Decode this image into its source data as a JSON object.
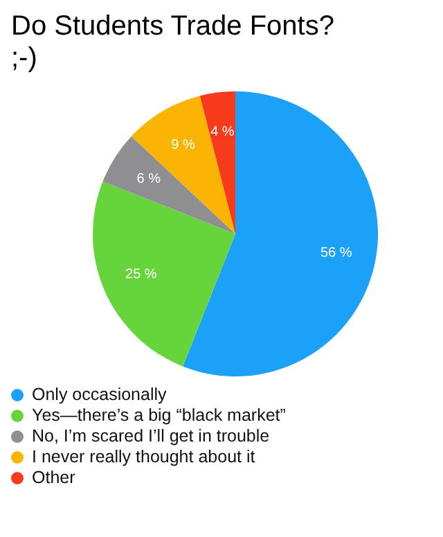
{
  "chart_data": {
    "type": "pie",
    "title": "Do Students Trade Fonts? ;-)",
    "categories": [
      "Only occasionally",
      "Yes—there’s a big “black market”",
      "No, I’m scared I’ll get in trouble",
      "I never really thought about it",
      "Other"
    ],
    "values": [
      56,
      25,
      6,
      9,
      4
    ],
    "value_labels": [
      "56 %",
      "25 %",
      "6 %",
      "9 %",
      "4 %"
    ],
    "colors": [
      "#1ba1f8",
      "#66d43a",
      "#8e8e93",
      "#f8b400",
      "#f83a1c"
    ],
    "legend": "bottom"
  }
}
